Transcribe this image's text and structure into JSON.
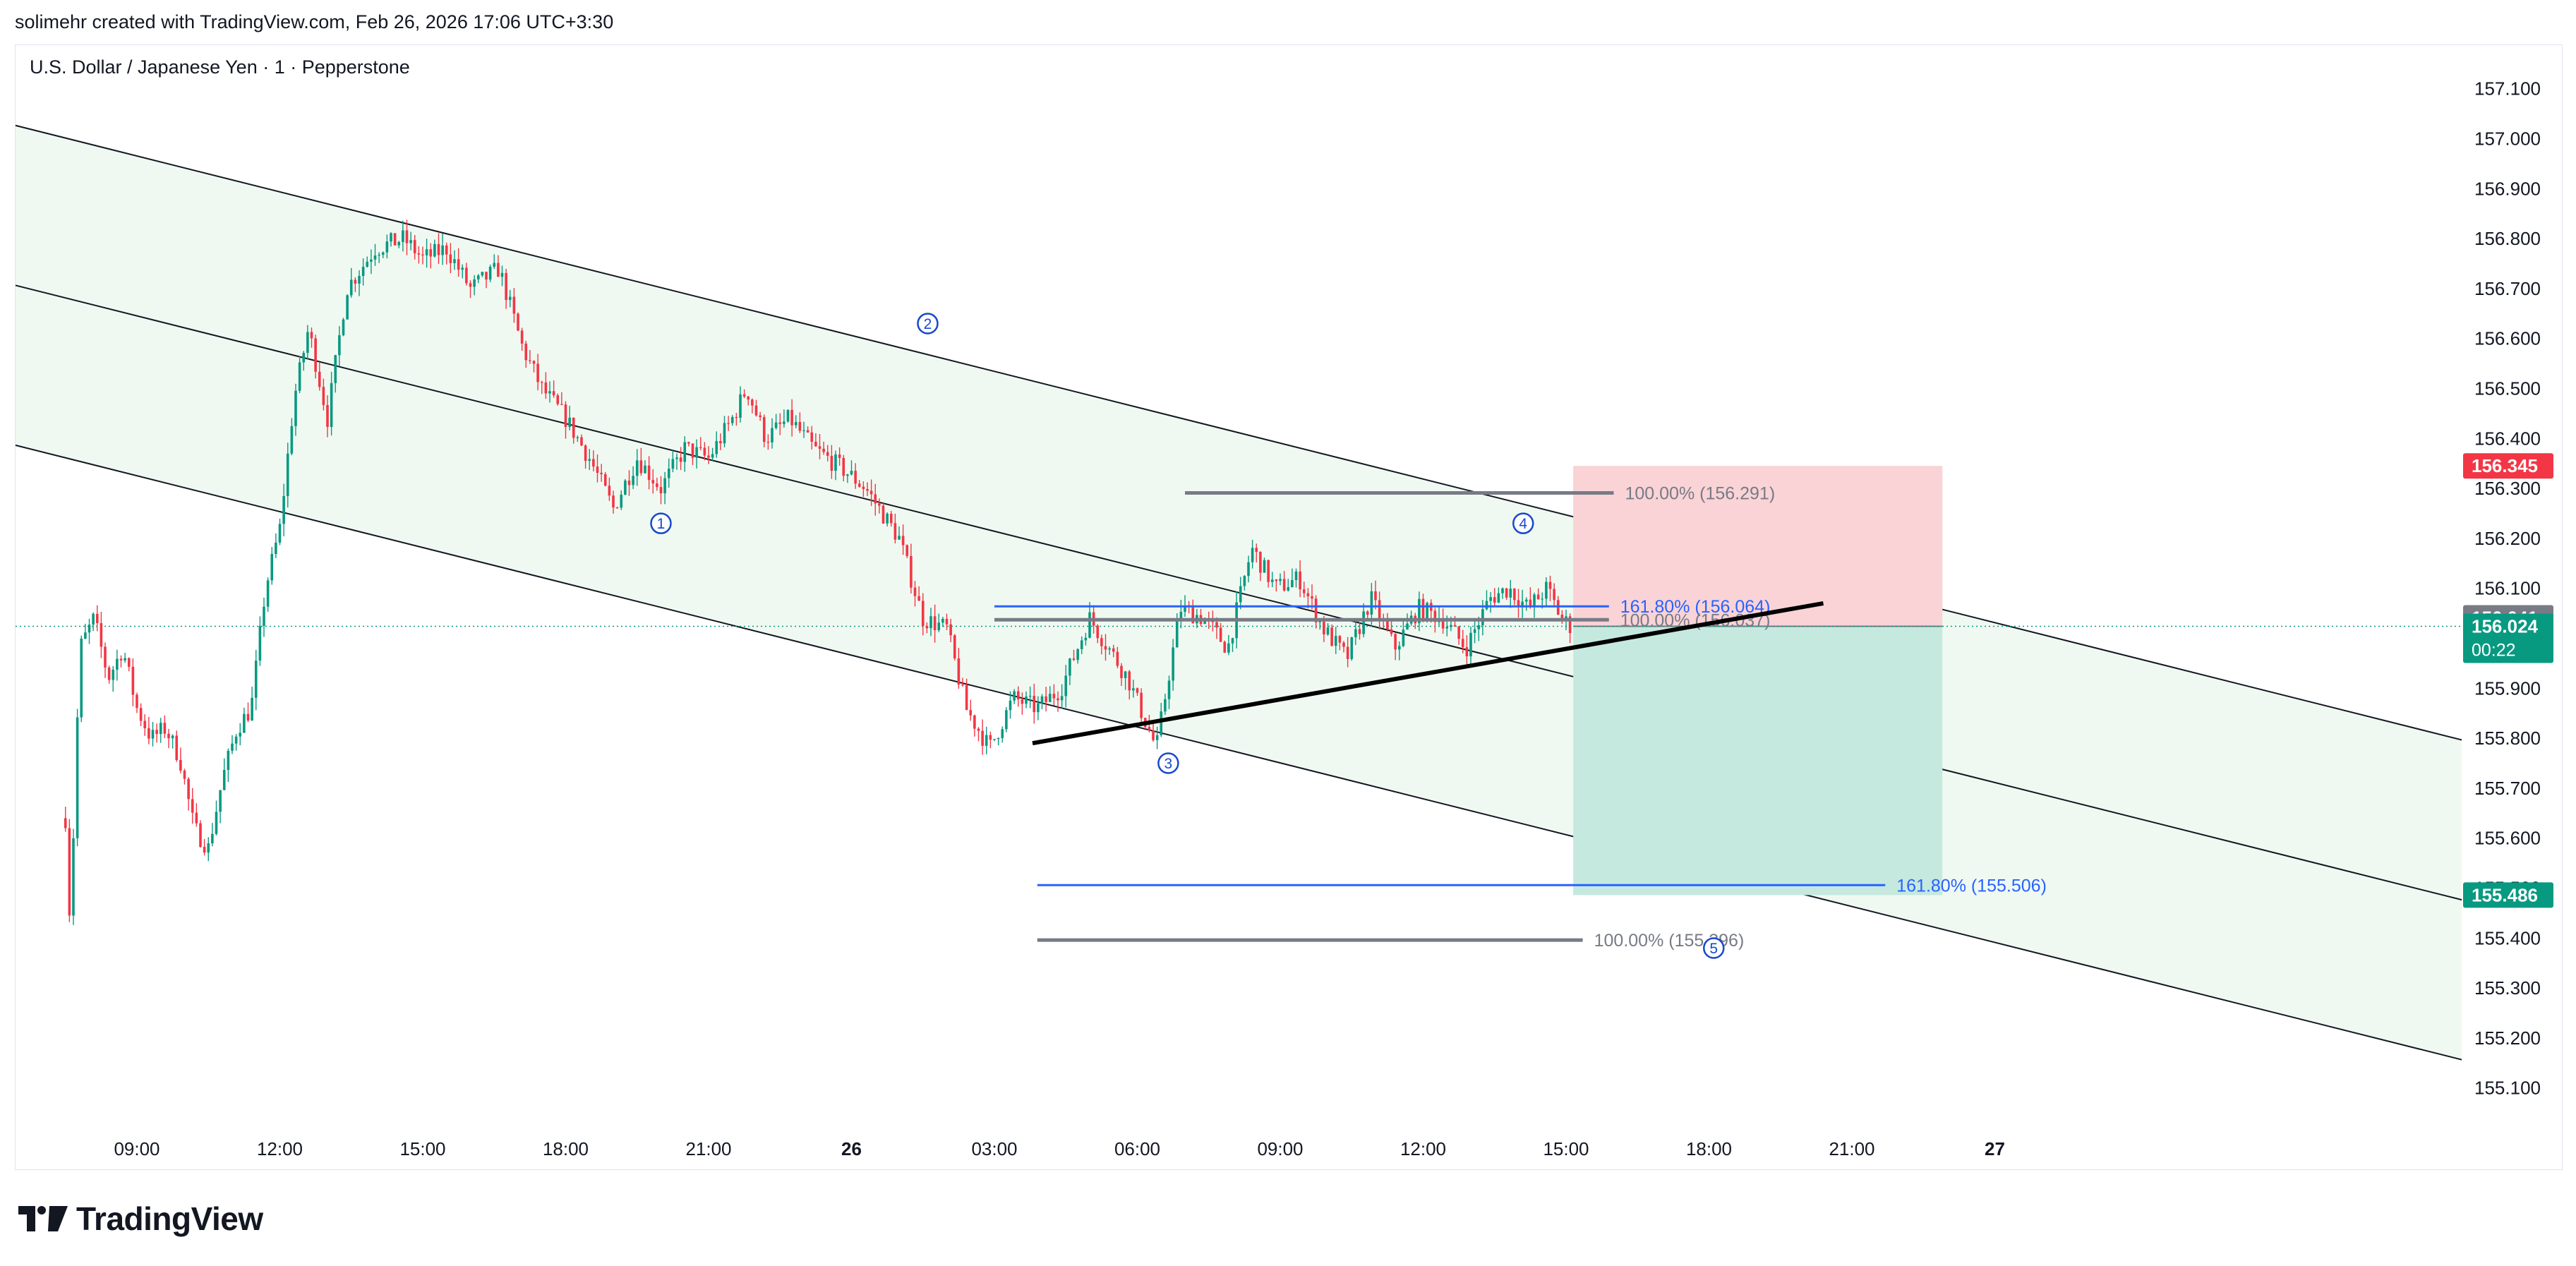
{
  "header": {
    "created_by": "solimehr created with TradingView.com, Feb 26, 2026 17:06 UTC+3:30"
  },
  "symbol": {
    "title": "U.S. Dollar / Japanese Yen · 1 · Pepperstone"
  },
  "brand": {
    "name": "TradingView",
    "icon": "tradingview-logo-icon"
  },
  "colors": {
    "up_candle": "#089981",
    "down_candle": "#f23645",
    "channel_fill": "#f0f9f1",
    "fib_blue": "#2962ff",
    "fib_gray": "#787b86",
    "stop_zone": "#f9d3d6",
    "target_zone": "#c6e9df",
    "current_price": "#089981",
    "stop_price": "#f23645"
  },
  "chart_data": {
    "type": "candlestick",
    "y_axis": {
      "ticks": [
        "157.100",
        "157.000",
        "156.900",
        "156.800",
        "156.700",
        "156.600",
        "156.500",
        "156.400",
        "156.300",
        "156.200",
        "156.100",
        "156.000",
        "155.900",
        "155.800",
        "155.700",
        "155.600",
        "155.500",
        "155.400",
        "155.300",
        "155.200",
        "155.100"
      ],
      "range": [
        155.05,
        157.15
      ]
    },
    "x_axis": {
      "ticks": [
        "09:00",
        "12:00",
        "15:00",
        "18:00",
        "21:00",
        "26",
        "03:00",
        "06:00",
        "09:00",
        "12:00",
        "15:00",
        "18:00",
        "21:00",
        "27"
      ],
      "bold_ticks": [
        "26",
        "27"
      ]
    },
    "price_path": [
      [
        "-1.5",
        155.64
      ],
      [
        "-1.4",
        155.42
      ],
      [
        "-1.2",
        155.98
      ],
      [
        "-0.9",
        156.04
      ],
      [
        "-0.6",
        155.92
      ],
      [
        "-0.3",
        155.98
      ],
      [
        "0.0",
        155.86
      ],
      [
        "0.3",
        155.8
      ],
      [
        "0.6",
        155.82
      ],
      [
        "0.9",
        155.76
      ],
      [
        "1.2",
        155.62
      ],
      [
        "1.5",
        155.58
      ],
      [
        "1.8",
        155.72
      ],
      [
        "2.1",
        155.82
      ],
      [
        "2.4",
        155.86
      ],
      [
        "2.7",
        156.1
      ],
      [
        "3.0",
        156.22
      ],
      [
        "3.3",
        156.48
      ],
      [
        "3.6",
        156.62
      ],
      [
        "4.0",
        156.44
      ],
      [
        "4.4",
        156.7
      ],
      [
        "5.0",
        156.78
      ],
      [
        "5.6",
        156.8
      ],
      [
        "6.0",
        156.76
      ],
      [
        "6.5",
        156.78
      ],
      [
        "7.0",
        156.7
      ],
      [
        "7.6",
        156.74
      ],
      [
        "8.1",
        156.58
      ],
      [
        "8.5",
        156.5
      ],
      [
        "9.0",
        156.44
      ],
      [
        "9.5",
        156.36
      ],
      [
        "10.0",
        156.26
      ],
      [
        "10.5",
        156.36
      ],
      [
        "11.0",
        156.3
      ],
      [
        "11.5",
        156.38
      ],
      [
        "12.0",
        156.36
      ],
      [
        "12.5",
        156.44
      ],
      [
        "12.8",
        156.5
      ],
      [
        "13.2",
        156.4
      ],
      [
        "13.7",
        156.44
      ],
      [
        "14.2",
        156.38
      ],
      [
        "14.8",
        156.34
      ],
      [
        "15.3",
        156.3
      ],
      [
        "16.0",
        156.2
      ],
      [
        "16.5",
        156.04
      ],
      [
        "17.0",
        156.02
      ],
      [
        "17.4",
        155.86
      ],
      [
        "17.9",
        155.78
      ],
      [
        "18.4",
        155.88
      ],
      [
        "18.9",
        155.86
      ],
      [
        "19.4",
        155.9
      ],
      [
        "20.0",
        156.04
      ],
      [
        "20.4",
        155.98
      ],
      [
        "20.8",
        155.92
      ],
      [
        "21.4",
        155.78
      ],
      [
        "21.9",
        156.06
      ],
      [
        "22.4",
        156.04
      ],
      [
        "22.9",
        155.98
      ],
      [
        "23.4",
        156.18
      ],
      [
        "23.9",
        156.1
      ],
      [
        "24.4",
        156.12
      ],
      [
        "24.9",
        156.02
      ],
      [
        "25.4",
        155.96
      ],
      [
        "25.9",
        156.08
      ],
      [
        "26.4",
        155.98
      ],
      [
        "26.9",
        156.06
      ],
      [
        "27.4",
        156.04
      ],
      [
        "27.9",
        155.98
      ],
      [
        "28.4",
        156.08
      ],
      [
        "28.8",
        156.1
      ],
      [
        "29.2",
        156.06
      ],
      [
        "29.6",
        156.1
      ],
      [
        "29.9",
        156.04
      ],
      [
        "30.15",
        156.02
      ]
    ],
    "wave_labels": [
      {
        "label": "1",
        "x": "11.0",
        "y": 156.23
      },
      {
        "label": "2",
        "x": "16.6",
        "y": 156.63
      },
      {
        "label": "3",
        "x": "21.65",
        "y": 155.75
      },
      {
        "label": "4",
        "x": "29.1",
        "y": 156.23
      },
      {
        "label": "5",
        "x": "33.1",
        "y": 155.38
      }
    ],
    "fib_levels": [
      {
        "label": "100.00% (156.291)",
        "price": 156.291,
        "x1": "22.0",
        "x2": "31.0",
        "color": "gray"
      },
      {
        "label": "161.80% (156.064)",
        "price": 156.064,
        "x1": "18.0",
        "x2": "30.9",
        "color": "blue"
      },
      {
        "label": "100.00% (156.037)",
        "price": 156.037,
        "x1": "18.0",
        "x2": "30.9",
        "color": "gray"
      },
      {
        "label": "161.80% (155.506)",
        "price": 155.506,
        "x1": "18.9",
        "x2": "36.7",
        "color": "blue"
      },
      {
        "label": "100.00% (155.396)",
        "price": 155.396,
        "x1": "18.9",
        "x2": "30.35",
        "color": "gray"
      }
    ],
    "channel": {
      "upper": [
        [
          "-2.7",
          157.03
        ],
        [
          "52.0",
          155.72
        ]
      ],
      "middle": [
        [
          "-2.7",
          156.71
        ],
        [
          "52.0",
          155.4
        ]
      ],
      "lower": [
        [
          "-2.7",
          156.39
        ],
        [
          "52.0",
          155.08
        ]
      ]
    },
    "trend_line": [
      [
        "18.8",
        155.79
      ],
      [
        "35.4",
        156.07
      ]
    ],
    "position": {
      "x1": "30.15",
      "x2": "37.9",
      "entry": 156.024,
      "stop": 156.345,
      "target": 155.486
    },
    "price_labels": [
      {
        "text": "156.345",
        "price": 156.345,
        "color": "#f23645"
      },
      {
        "text": "156.041",
        "price": 156.041,
        "color": "#787b86"
      },
      {
        "text": "156.024",
        "price": 156.024,
        "color": "#089981",
        "sub": "00:22"
      },
      {
        "text": "155.486",
        "price": 155.486,
        "color": "#089981"
      }
    ],
    "current_price": 156.024
  }
}
